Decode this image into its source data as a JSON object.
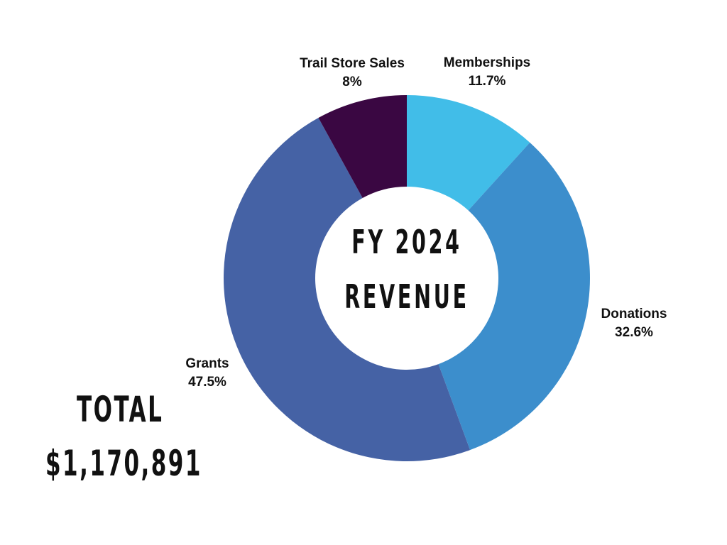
{
  "chart_data": {
    "type": "pie",
    "title": "FY 2024 REVENUE",
    "title_lines": [
      "FY 2024",
      "REVENUE"
    ],
    "total_label": "TOTAL",
    "total_value": "$1,170,891",
    "slices": [
      {
        "label": "Memberships",
        "value": 11.7,
        "display": "11.7%",
        "color": "#41BDE8"
      },
      {
        "label": "Donations",
        "value": 32.6,
        "display": "32.6%",
        "color": "#3C8ECC"
      },
      {
        "label": "Grants",
        "value": 47.5,
        "display": "47.5%",
        "color": "#4562A5"
      },
      {
        "label": "Trail Store Sales",
        "value": 8,
        "display": "8%",
        "color": "#3A0742"
      }
    ],
    "start_angle": "12 o'clock, clockwise",
    "legend": "none (labels outside slices)"
  }
}
